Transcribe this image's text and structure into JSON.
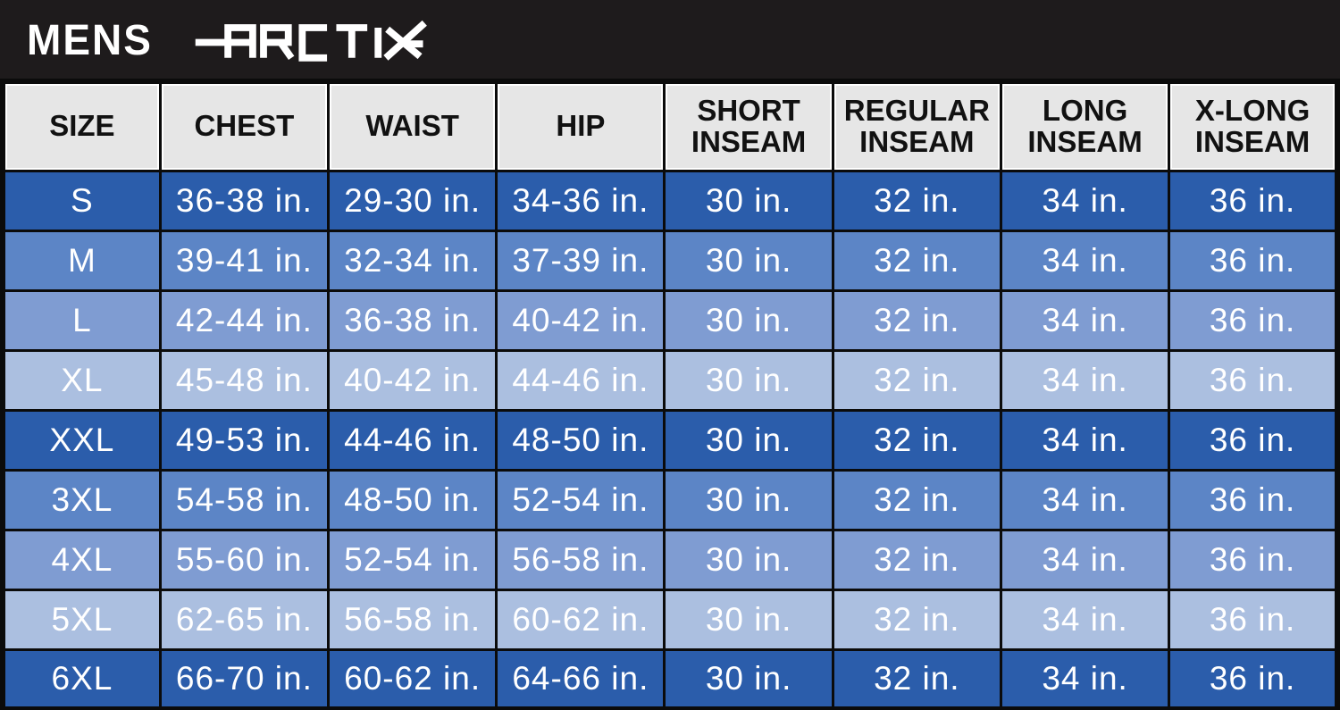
{
  "banner": {
    "category_label": "MENS",
    "brand": "ARCTIX"
  },
  "colors": {
    "banner_bg": "#1e1b1c",
    "grid": "#0b0b0b",
    "header_bg": "#e6e6e6",
    "header_text": "#111111",
    "data_text": "#ffffff",
    "row_dark": "#2b5dab",
    "row_medium": "#5c85c6",
    "row_light": "#7f9cd2",
    "row_lightest": "#abbfe0"
  },
  "table": {
    "headers": [
      {
        "key": "size",
        "line1": "SIZE",
        "line2": ""
      },
      {
        "key": "chest",
        "line1": "CHEST",
        "line2": ""
      },
      {
        "key": "waist",
        "line1": "WAIST",
        "line2": ""
      },
      {
        "key": "hip",
        "line1": "HIP",
        "line2": ""
      },
      {
        "key": "short-inseam",
        "line1": "SHORT",
        "line2": "INSEAM"
      },
      {
        "key": "regular-inseam",
        "line1": "REGULAR",
        "line2": "INSEAM"
      },
      {
        "key": "long-inseam",
        "line1": "LONG",
        "line2": "INSEAM"
      },
      {
        "key": "x-long-inseam",
        "line1": "X-LONG",
        "line2": "INSEAM"
      }
    ],
    "rows": [
      {
        "size": "S",
        "shade": "dark",
        "cells": [
          "S",
          "36-38 in.",
          "29-30 in.",
          "34-36 in.",
          "30 in.",
          "32 in.",
          "34 in.",
          "36 in."
        ]
      },
      {
        "size": "M",
        "shade": "medium",
        "cells": [
          "M",
          "39-41 in.",
          "32-34 in.",
          "37-39 in.",
          "30 in.",
          "32 in.",
          "34 in.",
          "36 in."
        ]
      },
      {
        "size": "L",
        "shade": "light",
        "cells": [
          "L",
          "42-44 in.",
          "36-38 in.",
          "40-42 in.",
          "30 in.",
          "32 in.",
          "34 in.",
          "36 in."
        ]
      },
      {
        "size": "XL",
        "shade": "lightest",
        "cells": [
          "XL",
          "45-48 in.",
          "40-42 in.",
          "44-46 in.",
          "30 in.",
          "32 in.",
          "34 in.",
          "36 in."
        ]
      },
      {
        "size": "XXL",
        "shade": "dark",
        "cells": [
          "XXL",
          "49-53 in.",
          "44-46 in.",
          "48-50 in.",
          "30 in.",
          "32 in.",
          "34 in.",
          "36 in."
        ]
      },
      {
        "size": "3XL",
        "shade": "medium",
        "cells": [
          "3XL",
          "54-58 in.",
          "48-50 in.",
          "52-54 in.",
          "30 in.",
          "32 in.",
          "34 in.",
          "36 in."
        ]
      },
      {
        "size": "4XL",
        "shade": "light",
        "cells": [
          "4XL",
          "55-60 in.",
          "52-54 in.",
          "56-58 in.",
          "30 in.",
          "32 in.",
          "34 in.",
          "36 in."
        ]
      },
      {
        "size": "5XL",
        "shade": "lightest",
        "cells": [
          "5XL",
          "62-65 in.",
          "56-58 in.",
          "60-62 in.",
          "30 in.",
          "32 in.",
          "34 in.",
          "36 in."
        ]
      },
      {
        "size": "6XL",
        "shade": "dark",
        "cells": [
          "6XL",
          "66-70 in.",
          "60-62 in.",
          "64-66 in.",
          "30 in.",
          "32 in.",
          "34 in.",
          "36 in."
        ]
      }
    ]
  }
}
